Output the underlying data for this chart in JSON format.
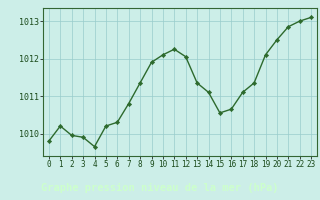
{
  "hours": [
    0,
    1,
    2,
    3,
    4,
    5,
    6,
    7,
    8,
    9,
    10,
    11,
    12,
    13,
    14,
    15,
    16,
    17,
    18,
    19,
    20,
    21,
    22,
    23
  ],
  "pressure": [
    1009.8,
    1010.2,
    1009.95,
    1009.9,
    1009.65,
    1010.2,
    1010.3,
    1010.8,
    1011.35,
    1011.9,
    1012.1,
    1012.25,
    1012.05,
    1011.35,
    1011.1,
    1010.55,
    1010.65,
    1011.1,
    1011.35,
    1012.1,
    1012.5,
    1012.85,
    1013.0,
    1013.1
  ],
  "line_color": "#2d6a2d",
  "marker": "D",
  "marker_size": 2.2,
  "bg_color": "#cceee8",
  "grid_color": "#99cccc",
  "bottom_bar_color": "#336633",
  "bottom_text_color": "#ccffcc",
  "xlabel": "Graphe pression niveau de la mer (hPa)",
  "xlabel_fontsize": 7.5,
  "ylim": [
    1009.4,
    1013.35
  ],
  "yticks": [
    1010,
    1011,
    1012,
    1013
  ],
  "xticks": [
    0,
    1,
    2,
    3,
    4,
    5,
    6,
    7,
    8,
    9,
    10,
    11,
    12,
    13,
    14,
    15,
    16,
    17,
    18,
    19,
    20,
    21,
    22,
    23
  ],
  "tick_fontsize": 5.5,
  "line_width": 1.0,
  "ytick_fontsize": 6.0
}
